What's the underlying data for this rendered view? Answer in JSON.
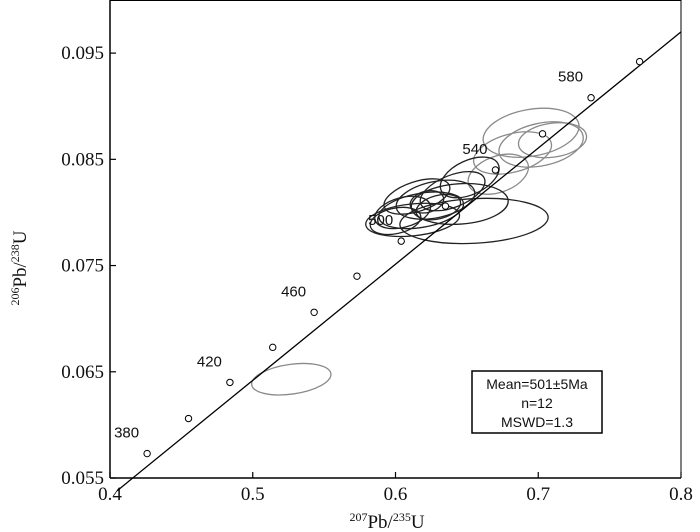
{
  "chart_data": {
    "type": "scatter",
    "title": "",
    "xlabel": {
      "sup": "207",
      "main": "Pb/",
      "sup2": "235",
      "end": "U"
    },
    "ylabel": {
      "sup": "206",
      "main": "Pb/",
      "sup2": "238",
      "end": "U"
    },
    "xlim": [
      0.4,
      0.8
    ],
    "ylim": [
      0.055,
      0.1
    ],
    "x_ticks": [
      {
        "value": 0.4,
        "label": "0.4"
      },
      {
        "value": 0.5,
        "label": "0.5"
      },
      {
        "value": 0.6,
        "label": "0.6"
      },
      {
        "value": 0.7,
        "label": "0.7"
      },
      {
        "value": 0.8,
        "label": "0.8"
      }
    ],
    "y_ticks": [
      {
        "value": 0.055,
        "label": "0.055"
      },
      {
        "value": 0.065,
        "label": "0.065"
      },
      {
        "value": 0.075,
        "label": "0.075"
      },
      {
        "value": 0.085,
        "label": "0.085"
      },
      {
        "value": 0.095,
        "label": "0.095"
      }
    ],
    "concordia_line": [
      [
        0.405,
        0.0538
      ],
      [
        0.8,
        0.097
      ]
    ],
    "age_markers": [
      {
        "x": 0.426,
        "y": 0.0573
      },
      {
        "x": 0.455,
        "y": 0.0606
      },
      {
        "x": 0.484,
        "y": 0.064
      },
      {
        "x": 0.514,
        "y": 0.0673
      },
      {
        "x": 0.543,
        "y": 0.0706
      },
      {
        "x": 0.573,
        "y": 0.074
      },
      {
        "x": 0.604,
        "y": 0.0773
      },
      {
        "x": 0.635,
        "y": 0.0806
      },
      {
        "x": 0.67,
        "y": 0.084
      },
      {
        "x": 0.703,
        "y": 0.0874
      },
      {
        "x": 0.737,
        "y": 0.0908
      },
      {
        "x": 0.771,
        "y": 0.0942
      }
    ],
    "age_labels": [
      {
        "text": "380",
        "x": 0.426,
        "y": 0.0573
      },
      {
        "text": "420",
        "x": 0.484,
        "y": 0.064
      },
      {
        "text": "460",
        "x": 0.543,
        "y": 0.0706
      },
      {
        "text": "500",
        "x": 0.604,
        "y": 0.0773
      },
      {
        "text": "540",
        "x": 0.67,
        "y": 0.084
      },
      {
        "text": "580",
        "x": 0.737,
        "y": 0.0908
      }
    ],
    "ellipses": [
      {
        "cx": 0.527,
        "cy": 0.0643,
        "rx": 0.028,
        "ry": 0.0014,
        "rot": -8,
        "color": "#8a8a8a"
      },
      {
        "cx": 0.695,
        "cy": 0.0875,
        "rx": 0.034,
        "ry": 0.0022,
        "rot": -10,
        "color": "#8a8a8a"
      },
      {
        "cx": 0.702,
        "cy": 0.0864,
        "rx": 0.03,
        "ry": 0.002,
        "rot": -12,
        "color": "#8a8a8a"
      },
      {
        "cx": 0.682,
        "cy": 0.0856,
        "rx": 0.028,
        "ry": 0.0018,
        "rot": -15,
        "color": "#8a8a8a"
      },
      {
        "cx": 0.71,
        "cy": 0.0868,
        "rx": 0.024,
        "ry": 0.0016,
        "rot": -8,
        "color": "#8a8a8a"
      },
      {
        "cx": 0.672,
        "cy": 0.0836,
        "rx": 0.022,
        "ry": 0.0017,
        "rot": -20,
        "color": "#8a8a8a"
      },
      {
        "cx": 0.655,
        "cy": 0.0792,
        "rx": 0.052,
        "ry": 0.0021,
        "rot": -3,
        "color": "#222222"
      },
      {
        "cx": 0.645,
        "cy": 0.0808,
        "rx": 0.034,
        "ry": 0.0019,
        "rot": -4,
        "color": "#222222"
      },
      {
        "cx": 0.612,
        "cy": 0.0793,
        "rx": 0.033,
        "ry": 0.0015,
        "rot": -6,
        "color": "#222222"
      },
      {
        "cx": 0.618,
        "cy": 0.0802,
        "rx": 0.03,
        "ry": 0.0016,
        "rot": -10,
        "color": "#222222"
      },
      {
        "cx": 0.628,
        "cy": 0.0812,
        "rx": 0.028,
        "ry": 0.0017,
        "rot": -12,
        "color": "#222222"
      },
      {
        "cx": 0.615,
        "cy": 0.0815,
        "rx": 0.024,
        "ry": 0.0014,
        "rot": -18,
        "color": "#222222"
      },
      {
        "cx": 0.605,
        "cy": 0.08,
        "rx": 0.02,
        "ry": 0.0014,
        "rot": -15,
        "color": "#222222"
      },
      {
        "cx": 0.64,
        "cy": 0.082,
        "rx": 0.024,
        "ry": 0.0015,
        "rot": -22,
        "color": "#222222"
      },
      {
        "cx": 0.652,
        "cy": 0.0833,
        "rx": 0.022,
        "ry": 0.0016,
        "rot": -25,
        "color": "#222222"
      },
      {
        "cx": 0.63,
        "cy": 0.0805,
        "rx": 0.016,
        "ry": 0.0011,
        "rot": -15,
        "color": "#222222"
      },
      {
        "cx": 0.622,
        "cy": 0.081,
        "rx": 0.012,
        "ry": 0.001,
        "rot": -15,
        "color": "#222222"
      },
      {
        "cx": 0.6,
        "cy": 0.0792,
        "rx": 0.018,
        "ry": 0.0012,
        "rot": -12,
        "color": "#222222"
      }
    ],
    "legend": {
      "placement": "bottom-right",
      "lines": [
        "Mean=501±5Ma",
        "n=12",
        "MSWD=1.3"
      ]
    },
    "grid": false
  }
}
